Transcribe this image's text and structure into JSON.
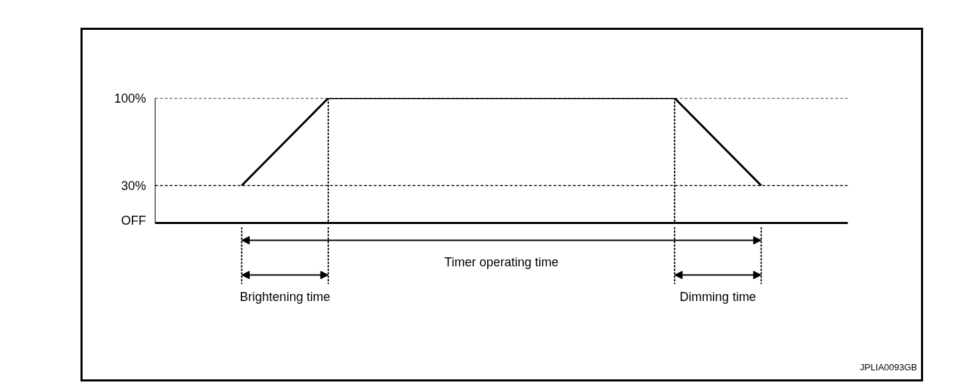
{
  "chart_data": {
    "type": "line",
    "categories": [
      null,
      null,
      null,
      null,
      null,
      null,
      null,
      null,
      null
    ],
    "values": [
      null,
      30,
      100,
      100,
      100,
      100,
      100,
      30,
      null
    ],
    "color": "#000000",
    "ylim": [
      0,
      100
    ],
    "yticks": [
      {
        "value": 0,
        "label": "OFF"
      },
      {
        "value": 30,
        "label": "30%"
      },
      {
        "value": 100,
        "label": "100%"
      }
    ],
    "tick_labels": "y",
    "ref_lines": [
      {
        "axis": "y",
        "value": 100,
        "line_style": "dashed"
      },
      {
        "axis": "y",
        "value": 30,
        "line_style": "dashed"
      }
    ],
    "annotations": [
      "Timer operating time",
      "Brightening time",
      "Dimming time",
      "JPLIA0093GB"
    ]
  }
}
